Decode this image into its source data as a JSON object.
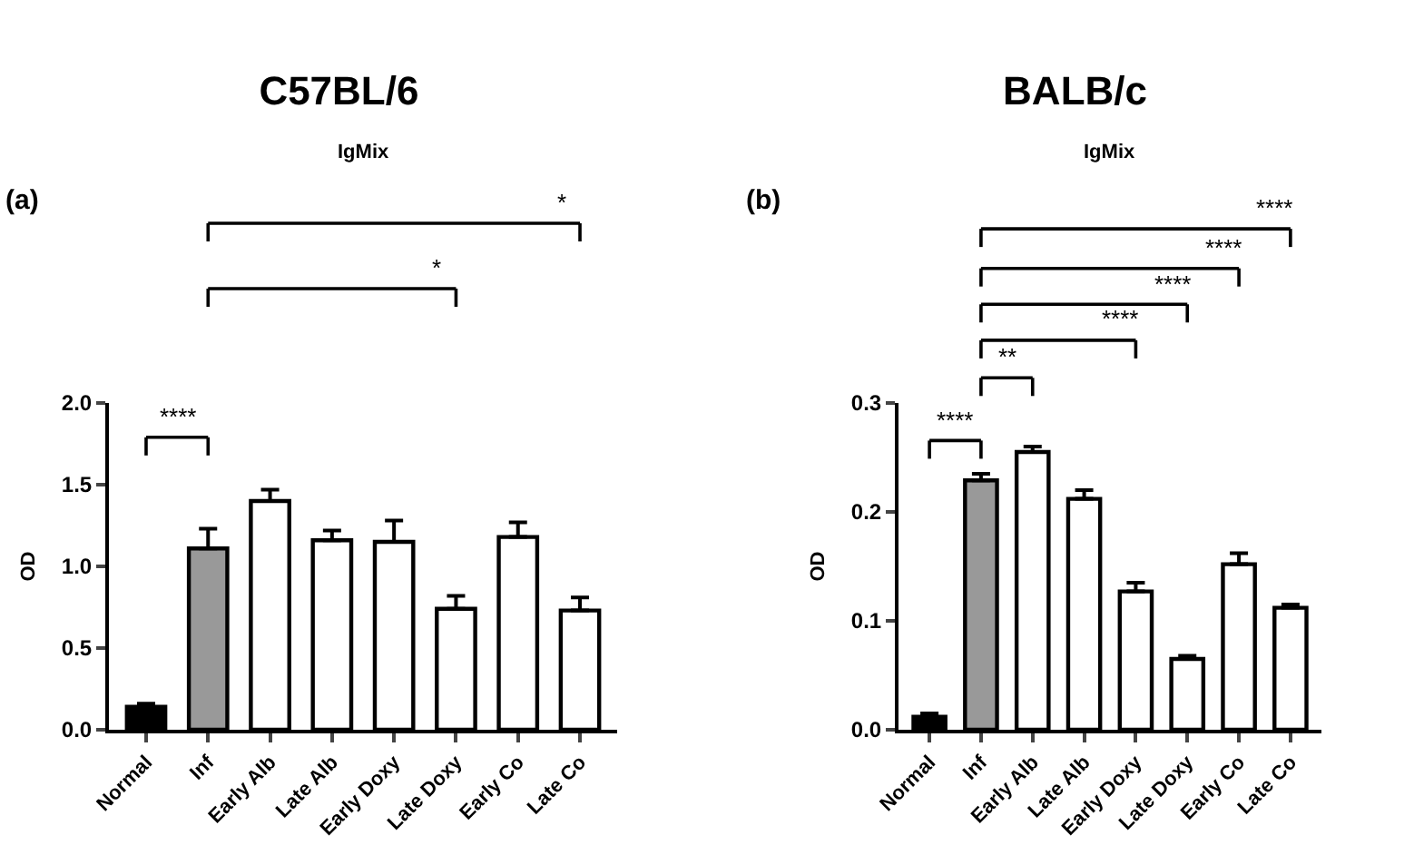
{
  "chart_data": [
    {
      "type": "bar",
      "title": "C57BL/6",
      "subtitle": "IgMix",
      "ylabel": "OD",
      "categories": [
        "Normal",
        "Inf",
        "Early Alb",
        "Late Alb",
        "Early Doxy",
        "Late Doxy",
        "Early Co",
        "Late Co"
      ],
      "values": [
        0.14,
        1.11,
        1.4,
        1.16,
        1.15,
        0.74,
        1.18,
        0.73
      ],
      "errors": [
        [
          0.14,
          0.16
        ],
        [
          1.11,
          1.23
        ],
        [
          1.4,
          1.47
        ],
        [
          1.16,
          1.22
        ],
        [
          1.15,
          1.28
        ],
        [
          0.74,
          0.82
        ],
        [
          1.18,
          1.27
        ],
        [
          0.73,
          0.81
        ]
      ],
      "colors": [
        "#000000",
        "#999999",
        "#ffffff",
        "#ffffff",
        "#ffffff",
        "#ffffff",
        "#ffffff",
        "#ffffff"
      ],
      "ylim": [
        0,
        2.0
      ],
      "yticks": [
        {
          "value": 0,
          "label": "0.0"
        },
        0.5,
        {
          "value": 1,
          "label": "1.0"
        },
        1.5,
        {
          "value": 2,
          "label": "2.0"
        }
      ],
      "grid": false,
      "legend": false,
      "annotations": [
        "(a)",
        "*",
        "*",
        "****"
      ]
    },
    {
      "type": "bar",
      "title": "BALB/c",
      "subtitle": "IgMix",
      "ylabel": "OD",
      "categories": [
        "Normal",
        "Inf",
        "Early Alb",
        "Late Alb",
        "Early Doxy",
        "Late Doxy",
        "Early Co",
        "Late Co"
      ],
      "values": [
        0.012,
        0.229,
        0.255,
        0.212,
        0.127,
        0.065,
        0.152,
        0.112
      ],
      "errors": [
        [
          0.012,
          0.015
        ],
        [
          0.229,
          0.235
        ],
        [
          0.255,
          0.26
        ],
        [
          0.212,
          0.22
        ],
        [
          0.127,
          0.135
        ],
        [
          0.065,
          0.068
        ],
        [
          0.152,
          0.162
        ],
        [
          0.112,
          0.115
        ]
      ],
      "colors": [
        "#000000",
        "#999999",
        "#ffffff",
        "#ffffff",
        "#ffffff",
        "#ffffff",
        "#ffffff",
        "#ffffff"
      ],
      "ylim": [
        0,
        0.3
      ],
      "yticks": [
        {
          "value": 0,
          "label": "0.0"
        },
        0.1,
        0.2,
        0.3
      ],
      "grid": false,
      "legend": false,
      "annotations": [
        "(b)",
        "****",
        "****",
        "****",
        "****",
        "**",
        "****"
      ]
    }
  ]
}
